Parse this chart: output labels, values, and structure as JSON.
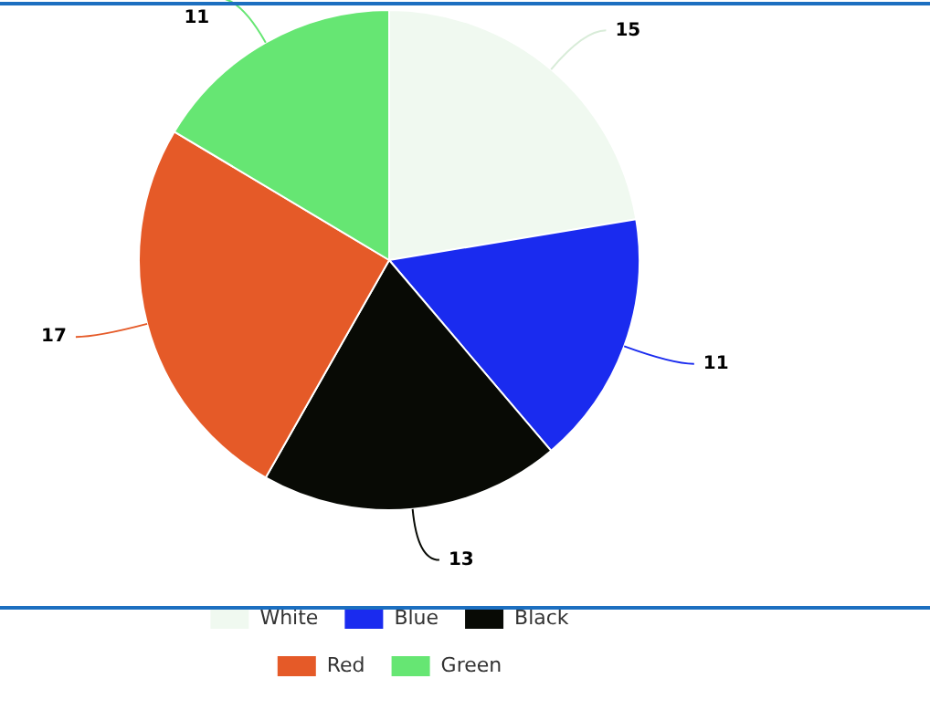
{
  "chart_data": {
    "type": "pie",
    "categories": [
      "White",
      "Blue",
      "Black",
      "Red",
      "Green"
    ],
    "values": [
      15,
      11,
      13,
      17,
      11
    ],
    "colors": [
      "#f0f9f0",
      "#1a2bef",
      "#080a05",
      "#e55a28",
      "#66e673"
    ],
    "data_labels": true,
    "legend": "bottom"
  }
}
